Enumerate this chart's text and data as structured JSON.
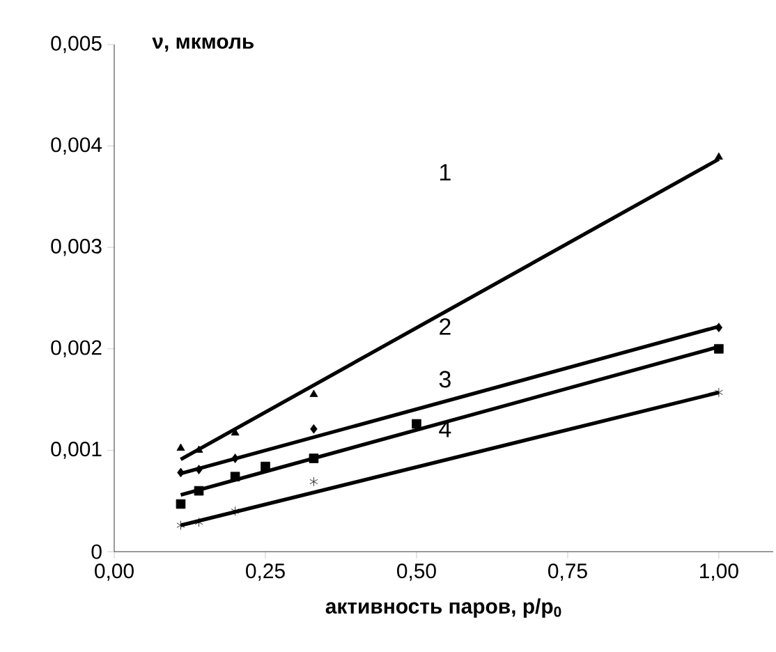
{
  "chart_data": {
    "type": "scatter",
    "xlabel": "активность паров, p/p$_{0}$",
    "ylabel": "ν, мкмоль",
    "xlim": [
      0,
      1.09
    ],
    "ylim": [
      0,
      0.005
    ],
    "xticks": [
      {
        "value": 0,
        "label": "0,00"
      },
      {
        "value": 0.25,
        "label": "0,25"
      },
      {
        "value": 0.5,
        "label": "0,50"
      },
      {
        "value": 0.75,
        "label": "0,75"
      },
      {
        "value": 1,
        "label": "1,00"
      }
    ],
    "yticks": [
      0,
      {
        "value": 0.001,
        "label": "0,001"
      },
      {
        "value": 0.002,
        "label": "0,002"
      },
      {
        "value": 0.003,
        "label": "0,003"
      },
      {
        "value": 0.004,
        "label": "0,004"
      },
      {
        "value": 0.005,
        "label": "0,005"
      }
    ],
    "grid": false,
    "series": [
      {
        "marker": "triangle",
        "color": "#000000",
        "x": [
          0.11,
          0.14,
          0.2,
          0.33,
          1.0
        ],
        "values": [
          0.00102,
          0.001,
          0.00117,
          0.00155,
          0.00389
        ]
      },
      {
        "marker": "diamond",
        "color": "#000000",
        "x": [
          0.11,
          0.14,
          0.2,
          0.33,
          1.0
        ],
        "values": [
          0.00078,
          0.00081,
          0.00092,
          0.00121,
          0.00221
        ]
      },
      {
        "marker": "square",
        "color": "#000000",
        "x": [
          0.11,
          0.14,
          0.2,
          0.25,
          0.33,
          0.5,
          1.0
        ],
        "values": [
          0.00047,
          0.0006,
          0.00074,
          0.00084,
          0.00092,
          0.00126,
          0.002
        ]
      },
      {
        "marker": "cross",
        "color": "#000000",
        "x": [
          0.11,
          0.14,
          0.2,
          0.33,
          1.0
        ],
        "values": [
          0.00026,
          0.00029,
          0.0004,
          0.00069,
          0.00157
        ]
      },
      {
        "type": "line",
        "marker": "none",
        "line_style": "solid",
        "color": "#000000",
        "x": [
          0.11,
          1.0
        ],
        "values": [
          0.00091,
          0.00387
        ]
      },
      {
        "type": "line",
        "marker": "none",
        "line_style": "solid",
        "color": "#000000",
        "x": [
          0.11,
          1.0
        ],
        "values": [
          0.00077,
          0.00222
        ]
      },
      {
        "type": "line",
        "marker": "none",
        "line_style": "solid",
        "color": "#000000",
        "x": [
          0.11,
          1.0
        ],
        "values": [
          0.00056,
          0.00202
        ]
      },
      {
        "type": "line",
        "marker": "none",
        "line_style": "solid",
        "color": "#000000",
        "x": [
          0.11,
          1.0
        ],
        "values": [
          0.00026,
          0.00157
        ]
      }
    ],
    "annotations": [
      "1",
      "2",
      "3",
      "4"
    ]
  }
}
